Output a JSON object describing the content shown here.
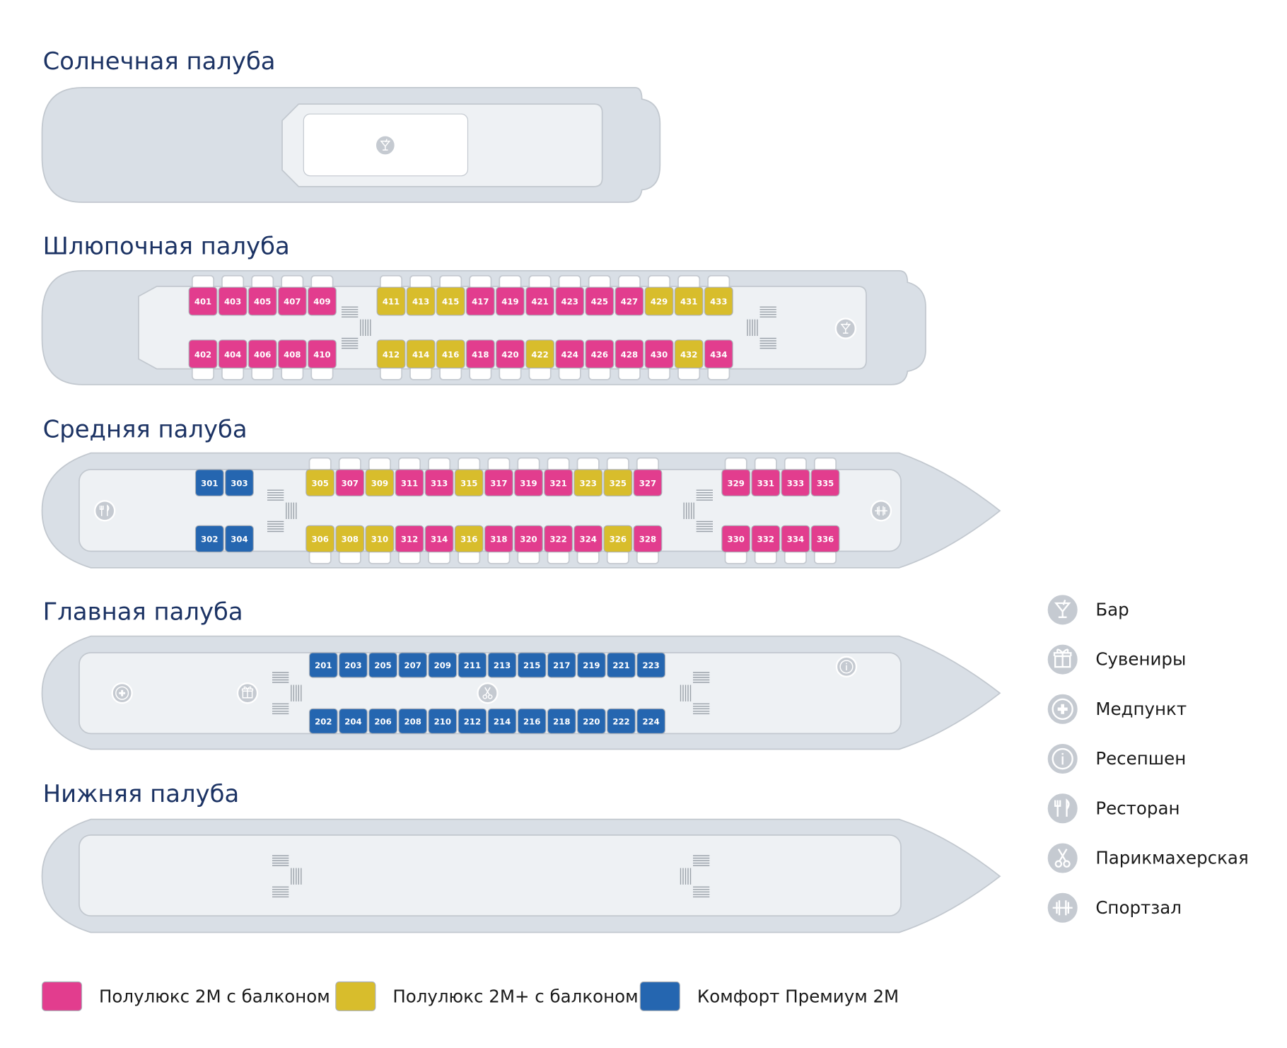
{
  "decks": [
    {
      "title": "Солнечная палуба",
      "rows": []
    },
    {
      "title": "Шлюпочная палуба",
      "rows": [
        [
          {
            "number": "401",
            "type": 0
          },
          {
            "number": "403",
            "type": 0
          },
          {
            "number": "405",
            "type": 0
          },
          {
            "number": "407",
            "type": 0
          },
          {
            "number": "409",
            "type": 0
          },
          {
            "number": "411",
            "type": 1
          },
          {
            "number": "413",
            "type": 1
          },
          {
            "number": "415",
            "type": 1
          },
          {
            "number": "417",
            "type": 0
          },
          {
            "number": "419",
            "type": 0
          },
          {
            "number": "421",
            "type": 0
          },
          {
            "number": "423",
            "type": 0
          },
          {
            "number": "425",
            "type": 0
          },
          {
            "number": "427",
            "type": 0
          },
          {
            "number": "429",
            "type": 1
          },
          {
            "number": "431",
            "type": 1
          },
          {
            "number": "433",
            "type": 1
          }
        ],
        [
          {
            "number": "402",
            "type": 0
          },
          {
            "number": "404",
            "type": 0
          },
          {
            "number": "406",
            "type": 0
          },
          {
            "number": "408",
            "type": 0
          },
          {
            "number": "410",
            "type": 0
          },
          {
            "number": "412",
            "type": 1
          },
          {
            "number": "414",
            "type": 1
          },
          {
            "number": "416",
            "type": 1
          },
          {
            "number": "418",
            "type": 0
          },
          {
            "number": "420",
            "type": 0
          },
          {
            "number": "422",
            "type": 1
          },
          {
            "number": "424",
            "type": 0
          },
          {
            "number": "426",
            "type": 0
          },
          {
            "number": "428",
            "type": 0
          },
          {
            "number": "430",
            "type": 0
          },
          {
            "number": "432",
            "type": 1
          },
          {
            "number": "434",
            "type": 0
          }
        ]
      ]
    },
    {
      "title": "Средняя палуба",
      "rows": [
        [
          {
            "number": "301",
            "type": 2
          },
          {
            "number": "303",
            "type": 2
          },
          {
            "number": "305",
            "type": 1
          },
          {
            "number": "307",
            "type": 0
          },
          {
            "number": "309",
            "type": 1
          },
          {
            "number": "311",
            "type": 0
          },
          {
            "number": "313",
            "type": 0
          },
          {
            "number": "315",
            "type": 1
          },
          {
            "number": "317",
            "type": 0
          },
          {
            "number": "319",
            "type": 0
          },
          {
            "number": "321",
            "type": 0
          },
          {
            "number": "323",
            "type": 1
          },
          {
            "number": "325",
            "type": 1
          },
          {
            "number": "327",
            "type": 0
          },
          {
            "number": "329",
            "type": 0
          },
          {
            "number": "331",
            "type": 0
          },
          {
            "number": "333",
            "type": 0
          },
          {
            "number": "335",
            "type": 0
          }
        ],
        [
          {
            "number": "302",
            "type": 2
          },
          {
            "number": "304",
            "type": 2
          },
          {
            "number": "306",
            "type": 1
          },
          {
            "number": "308",
            "type": 1
          },
          {
            "number": "310",
            "type": 1
          },
          {
            "number": "312",
            "type": 0
          },
          {
            "number": "314",
            "type": 0
          },
          {
            "number": "316",
            "type": 1
          },
          {
            "number": "318",
            "type": 0
          },
          {
            "number": "320",
            "type": 0
          },
          {
            "number": "322",
            "type": 0
          },
          {
            "number": "324",
            "type": 0
          },
          {
            "number": "326",
            "type": 1
          },
          {
            "number": "328",
            "type": 0
          },
          {
            "number": "330",
            "type": 0
          },
          {
            "number": "332",
            "type": 0
          },
          {
            "number": "334",
            "type": 0
          },
          {
            "number": "336",
            "type": 0
          }
        ]
      ]
    },
    {
      "title": "Главная палуба",
      "rows": [
        [
          {
            "number": "201",
            "type": 2
          },
          {
            "number": "203",
            "type": 2
          },
          {
            "number": "205",
            "type": 2
          },
          {
            "number": "207",
            "type": 2
          },
          {
            "number": "209",
            "type": 2
          },
          {
            "number": "211",
            "type": 2
          },
          {
            "number": "213",
            "type": 2
          },
          {
            "number": "215",
            "type": 2
          },
          {
            "number": "217",
            "type": 2
          },
          {
            "number": "219",
            "type": 2
          },
          {
            "number": "221",
            "type": 2
          },
          {
            "number": "223",
            "type": 2
          }
        ],
        [
          {
            "number": "202",
            "type": 2
          },
          {
            "number": "204",
            "type": 2
          },
          {
            "number": "206",
            "type": 2
          },
          {
            "number": "208",
            "type": 2
          },
          {
            "number": "210",
            "type": 2
          },
          {
            "number": "212",
            "type": 2
          },
          {
            "number": "214",
            "type": 2
          },
          {
            "number": "216",
            "type": 2
          },
          {
            "number": "218",
            "type": 2
          },
          {
            "number": "220",
            "type": 2
          },
          {
            "number": "222",
            "type": 2
          },
          {
            "number": "224",
            "type": 2
          }
        ]
      ]
    },
    {
      "title": "Нижняя палуба",
      "rows": []
    }
  ],
  "cabin_types": [
    {
      "label": "Полулюкс 2М с балконом",
      "color": "#e23d8e"
    },
    {
      "label": "Полулюкс 2М+ с балконом",
      "color": "#d8bd2c"
    },
    {
      "label": "Комфорт Премиум 2М",
      "color": "#2566b0"
    }
  ],
  "amenities": [
    {
      "label": "Бар"
    },
    {
      "label": "Сувениры"
    },
    {
      "label": "Медпункт"
    },
    {
      "label": "Ресепшен"
    },
    {
      "label": "Ресторан"
    },
    {
      "label": "Парикмахерская"
    },
    {
      "label": "Спортзал"
    }
  ]
}
